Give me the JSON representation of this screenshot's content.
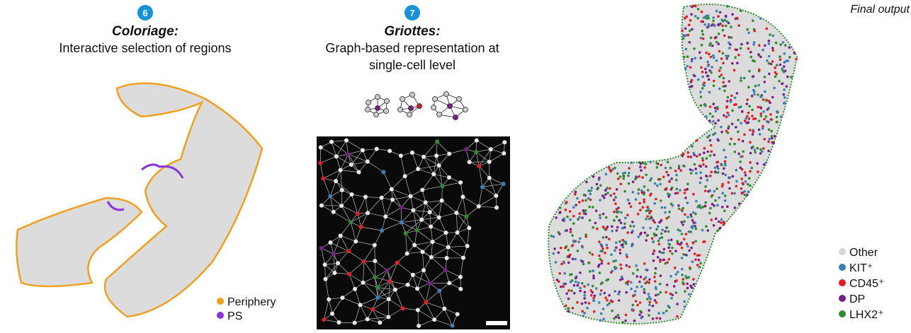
{
  "panel_left": {
    "step": "6",
    "title": "Coloriage:",
    "subtitle": "Interactive selection of regions",
    "legend": [
      "Periphery",
      "PS"
    ]
  },
  "panel_middle": {
    "step": "7",
    "title": "Griottes:",
    "subtitle_lines": [
      "Graph-based representation at",
      "single-cell level"
    ]
  },
  "panel_right": {
    "title": "Final output",
    "legend": [
      "Other",
      "KIT⁺",
      "CD45⁺",
      "DP",
      "LHX2⁺"
    ]
  }
}
